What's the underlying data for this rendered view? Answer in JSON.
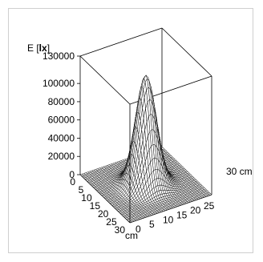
{
  "chart_data": {
    "type": "surface",
    "zlabel_prefix": "E [",
    "zlabel_unit": "lx",
    "zlabel_suffix": "]",
    "xlabel": "cm",
    "ylabel": "30 cm",
    "z_ticks": [
      "0",
      "20000",
      "40000",
      "60000",
      "80000",
      "100000",
      "130000"
    ],
    "x_ticks": [
      "0",
      "5",
      "10",
      "15",
      "20",
      "25",
      "30"
    ],
    "y_ticks": [
      "0",
      "5",
      "10",
      "15",
      "20",
      "25",
      "30"
    ],
    "x_range": [
      0,
      30
    ],
    "y_range": [
      0,
      30
    ],
    "z_range": [
      0,
      130000
    ],
    "grid": 42,
    "surface": {
      "function": "gaussian",
      "peak_value": 120000,
      "center_x": 15,
      "center_y": 15,
      "sigma": 3.3
    },
    "colors": {
      "surface_fill": "#ffffff",
      "mesh": "#000000"
    }
  }
}
